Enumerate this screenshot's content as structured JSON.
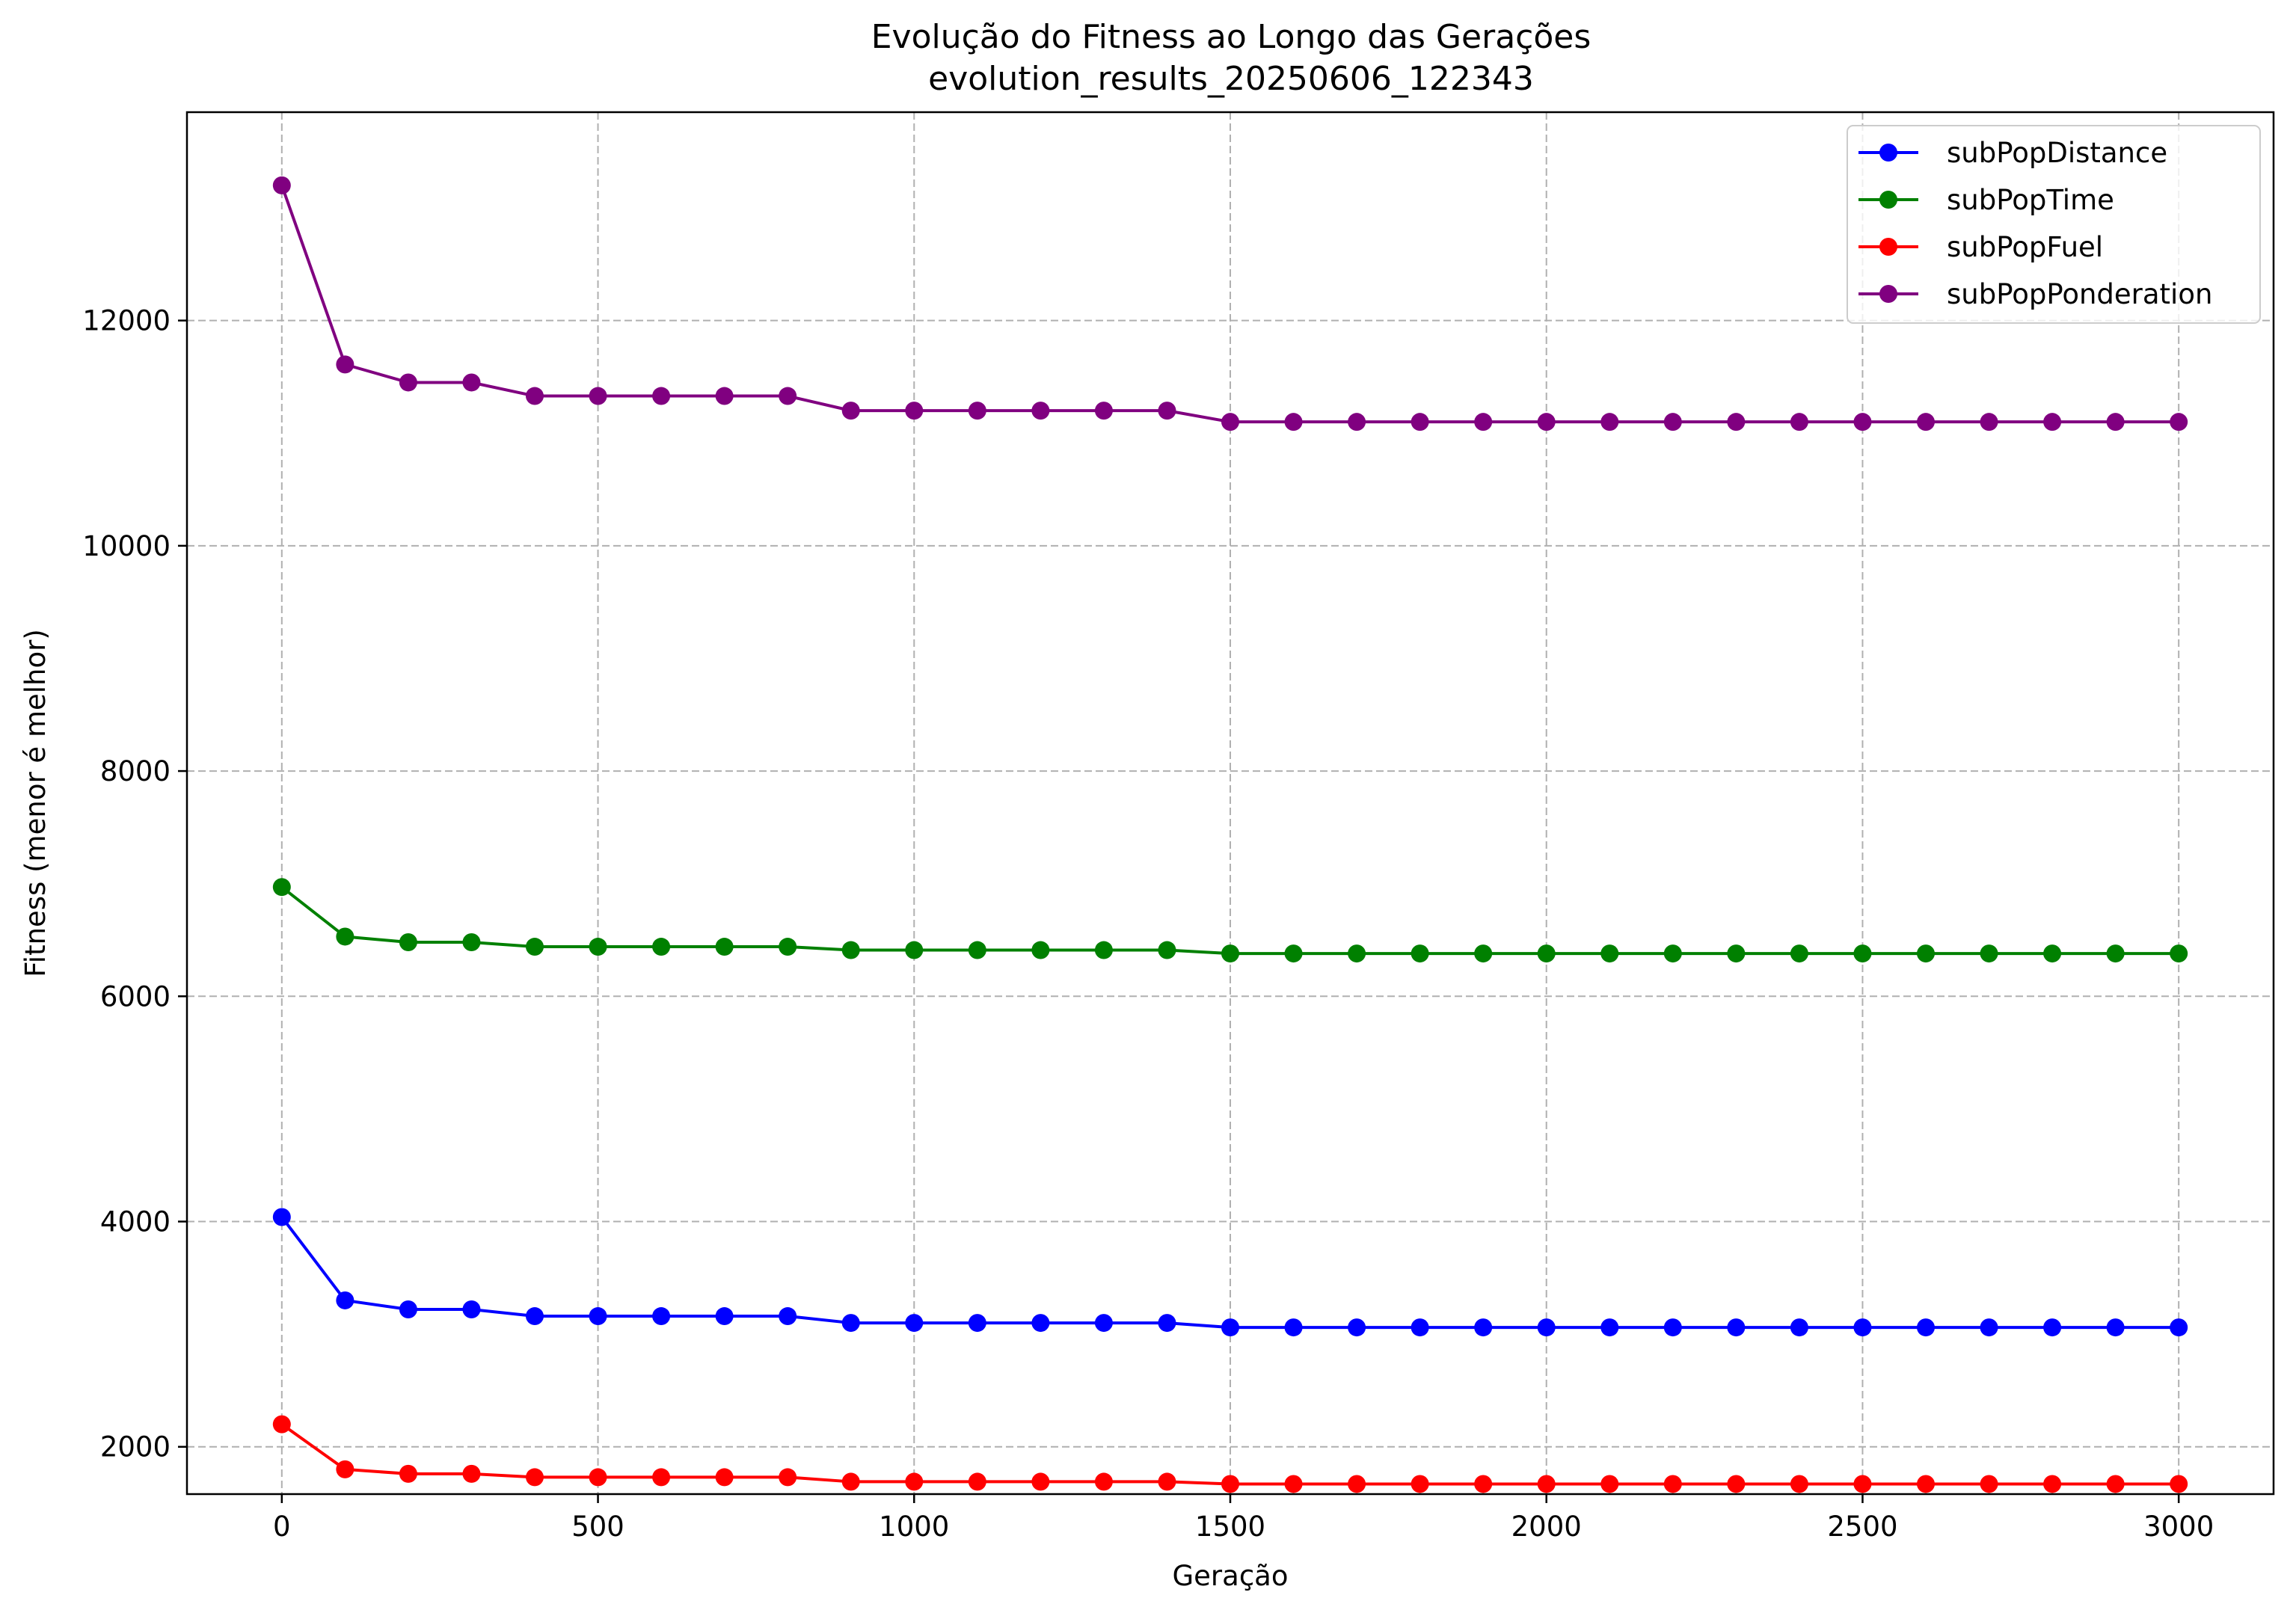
{
  "chart_data": {
    "type": "line",
    "title": "Evolução do Fitness ao Longo das Gerações",
    "subtitle": "evolution_results_20250606_122343",
    "xlabel": "Geração",
    "ylabel": "Fitness (menor é melhor)",
    "xlim": [
      -150,
      3150
    ],
    "ylim": [
      1580,
      13850
    ],
    "xticks": [
      0,
      500,
      1000,
      1500,
      2000,
      2500,
      3000
    ],
    "yticks": [
      2000,
      4000,
      6000,
      8000,
      10000,
      12000
    ],
    "grid": true,
    "legend_position": "top-right",
    "x": [
      0,
      100,
      200,
      300,
      400,
      500,
      600,
      700,
      800,
      900,
      1000,
      1100,
      1200,
      1300,
      1400,
      1500,
      1600,
      1700,
      1800,
      1900,
      2000,
      2100,
      2200,
      2300,
      2400,
      2500,
      2600,
      2700,
      2800,
      2900,
      3000
    ],
    "series": [
      {
        "name": "subPopDistance",
        "color": "#0000ff",
        "values": [
          4040,
          3300,
          3220,
          3220,
          3160,
          3160,
          3160,
          3160,
          3160,
          3100,
          3100,
          3100,
          3100,
          3100,
          3100,
          3060,
          3060,
          3060,
          3060,
          3060,
          3060,
          3060,
          3060,
          3060,
          3060,
          3060,
          3060,
          3060,
          3060,
          3060,
          3060
        ]
      },
      {
        "name": "subPopTime",
        "color": "#008000",
        "values": [
          6970,
          6530,
          6480,
          6480,
          6440,
          6440,
          6440,
          6440,
          6440,
          6410,
          6410,
          6410,
          6410,
          6410,
          6410,
          6380,
          6380,
          6380,
          6380,
          6380,
          6380,
          6380,
          6380,
          6380,
          6380,
          6380,
          6380,
          6380,
          6380,
          6380,
          6380
        ]
      },
      {
        "name": "subPopFuel",
        "color": "#ff0000",
        "values": [
          2200,
          1800,
          1760,
          1760,
          1730,
          1730,
          1730,
          1730,
          1730,
          1690,
          1690,
          1690,
          1690,
          1690,
          1690,
          1670,
          1670,
          1670,
          1670,
          1670,
          1670,
          1670,
          1670,
          1670,
          1670,
          1670,
          1670,
          1670,
          1670,
          1670,
          1670
        ]
      },
      {
        "name": "subPopPonderation",
        "color": "#800080",
        "values": [
          13200,
          11610,
          11450,
          11450,
          11330,
          11330,
          11330,
          11330,
          11330,
          11200,
          11200,
          11200,
          11200,
          11200,
          11200,
          11100,
          11100,
          11100,
          11100,
          11100,
          11100,
          11100,
          11100,
          11100,
          11100,
          11100,
          11100,
          11100,
          11100,
          11100,
          11100
        ]
      }
    ]
  }
}
